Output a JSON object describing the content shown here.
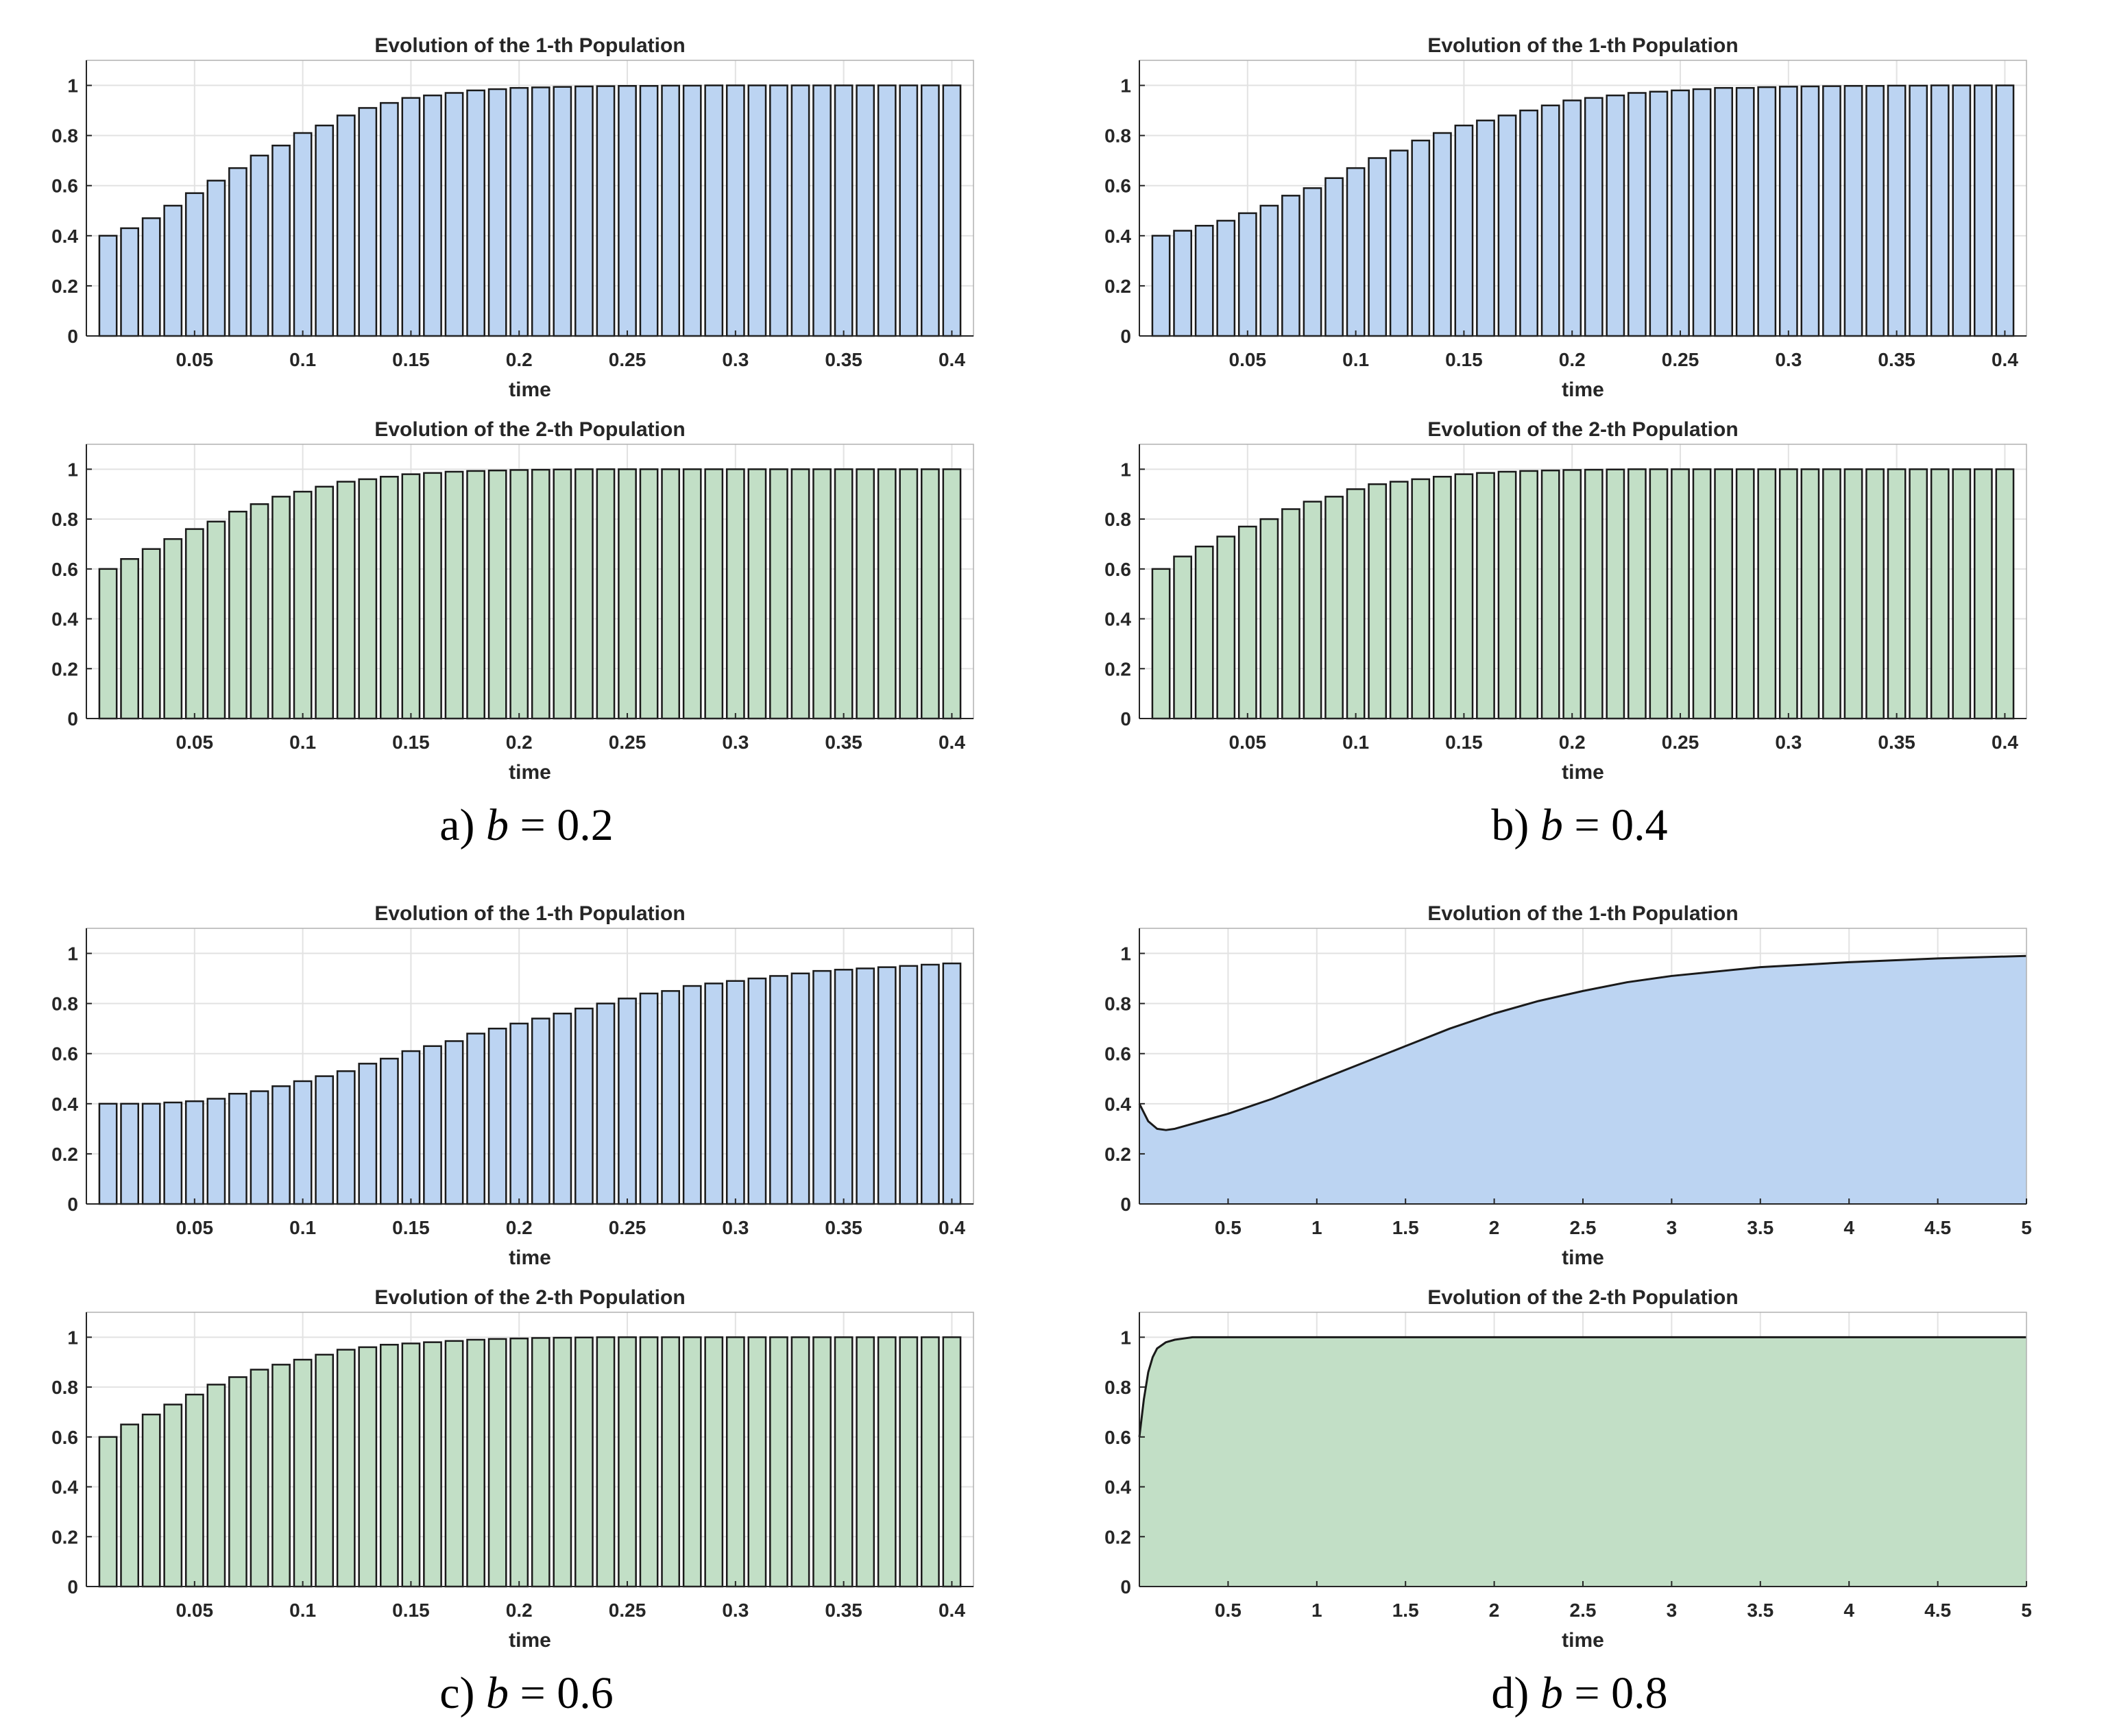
{
  "colors": {
    "pop1_fill": "#bcd4f2",
    "pop2_fill": "#c2dfc6",
    "edge": "#1a1a1a",
    "grid": "#e2e2e2",
    "axis": "#262626"
  },
  "panels": [
    {
      "id": "a",
      "caption_prefix": "a) ",
      "caption_var": "b",
      "caption_rest": " = 0.2"
    },
    {
      "id": "b",
      "caption_prefix": "b) ",
      "caption_var": "b",
      "caption_rest": " = 0.4"
    },
    {
      "id": "c",
      "caption_prefix": "c) ",
      "caption_var": "b",
      "caption_rest": " = 0.6"
    },
    {
      "id": "d",
      "caption_prefix": "d) ",
      "caption_var": "b",
      "caption_rest": " = 0.8"
    }
  ],
  "chart_data": [
    {
      "panel": "a",
      "type": "bar",
      "title": "Evolution of the 1-th Population",
      "xlabel": "time",
      "ylabel": "",
      "xlim": [
        0,
        0.41
      ],
      "ylim": [
        0,
        1.1
      ],
      "grid": true,
      "xticks": [
        "0.05",
        "0.1",
        "0.15",
        "0.2",
        "0.25",
        "0.3",
        "0.35",
        "0.4"
      ],
      "yticks": [
        "0",
        "0.2",
        "0.4",
        "0.6",
        "0.8",
        "1"
      ],
      "x": [
        0.01,
        0.02,
        0.03,
        0.04,
        0.05,
        0.06,
        0.07,
        0.08,
        0.09,
        0.1,
        0.11,
        0.12,
        0.13,
        0.14,
        0.15,
        0.16,
        0.17,
        0.18,
        0.19,
        0.2,
        0.21,
        0.22,
        0.23,
        0.24,
        0.25,
        0.26,
        0.27,
        0.28,
        0.29,
        0.3,
        0.31,
        0.32,
        0.33,
        0.34,
        0.35,
        0.36,
        0.37,
        0.38,
        0.39,
        0.4
      ],
      "values": [
        0.4,
        0.43,
        0.47,
        0.52,
        0.57,
        0.62,
        0.67,
        0.72,
        0.76,
        0.81,
        0.84,
        0.88,
        0.91,
        0.93,
        0.95,
        0.96,
        0.97,
        0.98,
        0.985,
        0.99,
        0.992,
        0.994,
        0.996,
        0.997,
        0.998,
        0.998,
        0.999,
        0.999,
        1,
        1,
        1,
        1,
        1,
        1,
        1,
        1,
        1,
        1,
        1,
        1
      ]
    },
    {
      "panel": "a",
      "type": "bar",
      "title": "Evolution of the 2-th Population",
      "xlabel": "time",
      "ylabel": "",
      "xlim": [
        0,
        0.41
      ],
      "ylim": [
        0,
        1.1
      ],
      "grid": true,
      "xticks": [
        "0.05",
        "0.1",
        "0.15",
        "0.2",
        "0.25",
        "0.3",
        "0.35",
        "0.4"
      ],
      "yticks": [
        "0",
        "0.2",
        "0.4",
        "0.6",
        "0.8",
        "1"
      ],
      "x": [
        0.01,
        0.02,
        0.03,
        0.04,
        0.05,
        0.06,
        0.07,
        0.08,
        0.09,
        0.1,
        0.11,
        0.12,
        0.13,
        0.14,
        0.15,
        0.16,
        0.17,
        0.18,
        0.19,
        0.2,
        0.21,
        0.22,
        0.23,
        0.24,
        0.25,
        0.26,
        0.27,
        0.28,
        0.29,
        0.3,
        0.31,
        0.32,
        0.33,
        0.34,
        0.35,
        0.36,
        0.37,
        0.38,
        0.39,
        0.4
      ],
      "values": [
        0.6,
        0.64,
        0.68,
        0.72,
        0.76,
        0.79,
        0.83,
        0.86,
        0.89,
        0.91,
        0.93,
        0.95,
        0.96,
        0.97,
        0.98,
        0.985,
        0.99,
        0.993,
        0.995,
        0.997,
        0.998,
        0.999,
        1,
        1,
        1,
        1,
        1,
        1,
        1,
        1,
        1,
        1,
        1,
        1,
        1,
        1,
        1,
        1,
        1,
        1
      ]
    },
    {
      "panel": "b",
      "type": "bar",
      "title": "Evolution of the 1-th Population",
      "xlabel": "time",
      "ylabel": "",
      "xlim": [
        0,
        0.41
      ],
      "ylim": [
        0,
        1.1
      ],
      "grid": true,
      "xticks": [
        "0.05",
        "0.1",
        "0.15",
        "0.2",
        "0.25",
        "0.3",
        "0.35",
        "0.4"
      ],
      "yticks": [
        "0",
        "0.2",
        "0.4",
        "0.6",
        "0.8",
        "1"
      ],
      "x": [
        0.01,
        0.02,
        0.03,
        0.04,
        0.05,
        0.06,
        0.07,
        0.08,
        0.09,
        0.1,
        0.11,
        0.12,
        0.13,
        0.14,
        0.15,
        0.16,
        0.17,
        0.18,
        0.19,
        0.2,
        0.21,
        0.22,
        0.23,
        0.24,
        0.25,
        0.26,
        0.27,
        0.28,
        0.29,
        0.3,
        0.31,
        0.32,
        0.33,
        0.34,
        0.35,
        0.36,
        0.37,
        0.38,
        0.39,
        0.4
      ],
      "values": [
        0.4,
        0.42,
        0.44,
        0.46,
        0.49,
        0.52,
        0.56,
        0.59,
        0.63,
        0.67,
        0.71,
        0.74,
        0.78,
        0.81,
        0.84,
        0.86,
        0.88,
        0.9,
        0.92,
        0.94,
        0.95,
        0.96,
        0.97,
        0.975,
        0.98,
        0.985,
        0.99,
        0.99,
        0.993,
        0.995,
        0.996,
        0.997,
        0.998,
        0.998,
        0.999,
        0.999,
        1,
        1,
        1,
        1
      ]
    },
    {
      "panel": "b",
      "type": "bar",
      "title": "Evolution of the 2-th Population",
      "xlabel": "time",
      "ylabel": "",
      "xlim": [
        0,
        0.41
      ],
      "ylim": [
        0,
        1.1
      ],
      "grid": true,
      "xticks": [
        "0.05",
        "0.1",
        "0.15",
        "0.2",
        "0.25",
        "0.3",
        "0.35",
        "0.4"
      ],
      "yticks": [
        "0",
        "0.2",
        "0.4",
        "0.6",
        "0.8",
        "1"
      ],
      "x": [
        0.01,
        0.02,
        0.03,
        0.04,
        0.05,
        0.06,
        0.07,
        0.08,
        0.09,
        0.1,
        0.11,
        0.12,
        0.13,
        0.14,
        0.15,
        0.16,
        0.17,
        0.18,
        0.19,
        0.2,
        0.21,
        0.22,
        0.23,
        0.24,
        0.25,
        0.26,
        0.27,
        0.28,
        0.29,
        0.3,
        0.31,
        0.32,
        0.33,
        0.34,
        0.35,
        0.36,
        0.37,
        0.38,
        0.39,
        0.4
      ],
      "values": [
        0.6,
        0.65,
        0.69,
        0.73,
        0.77,
        0.8,
        0.84,
        0.87,
        0.89,
        0.92,
        0.94,
        0.95,
        0.96,
        0.97,
        0.98,
        0.985,
        0.99,
        0.993,
        0.995,
        0.997,
        0.998,
        0.999,
        1,
        1,
        1,
        1,
        1,
        1,
        1,
        1,
        1,
        1,
        1,
        1,
        1,
        1,
        1,
        1,
        1,
        1
      ]
    },
    {
      "panel": "c",
      "type": "bar",
      "title": "Evolution of the 1-th Population",
      "xlabel": "time",
      "ylabel": "",
      "xlim": [
        0,
        0.41
      ],
      "ylim": [
        0,
        1.1
      ],
      "grid": true,
      "xticks": [
        "0.05",
        "0.1",
        "0.15",
        "0.2",
        "0.25",
        "0.3",
        "0.35",
        "0.4"
      ],
      "yticks": [
        "0",
        "0.2",
        "0.4",
        "0.6",
        "0.8",
        "1"
      ],
      "x": [
        0.01,
        0.02,
        0.03,
        0.04,
        0.05,
        0.06,
        0.07,
        0.08,
        0.09,
        0.1,
        0.11,
        0.12,
        0.13,
        0.14,
        0.15,
        0.16,
        0.17,
        0.18,
        0.19,
        0.2,
        0.21,
        0.22,
        0.23,
        0.24,
        0.25,
        0.26,
        0.27,
        0.28,
        0.29,
        0.3,
        0.31,
        0.32,
        0.33,
        0.34,
        0.35,
        0.36,
        0.37,
        0.38,
        0.39,
        0.4
      ],
      "values": [
        0.4,
        0.4,
        0.4,
        0.405,
        0.41,
        0.42,
        0.44,
        0.45,
        0.47,
        0.49,
        0.51,
        0.53,
        0.56,
        0.58,
        0.61,
        0.63,
        0.65,
        0.68,
        0.7,
        0.72,
        0.74,
        0.76,
        0.78,
        0.8,
        0.82,
        0.84,
        0.85,
        0.87,
        0.88,
        0.89,
        0.9,
        0.91,
        0.92,
        0.93,
        0.935,
        0.94,
        0.945,
        0.95,
        0.955,
        0.96
      ]
    },
    {
      "panel": "c",
      "type": "bar",
      "title": "Evolution of the 2-th Population",
      "xlabel": "time",
      "ylabel": "",
      "xlim": [
        0,
        0.41
      ],
      "ylim": [
        0,
        1.1
      ],
      "grid": true,
      "xticks": [
        "0.05",
        "0.1",
        "0.15",
        "0.2",
        "0.25",
        "0.3",
        "0.35",
        "0.4"
      ],
      "yticks": [
        "0",
        "0.2",
        "0.4",
        "0.6",
        "0.8",
        "1"
      ],
      "x": [
        0.01,
        0.02,
        0.03,
        0.04,
        0.05,
        0.06,
        0.07,
        0.08,
        0.09,
        0.1,
        0.11,
        0.12,
        0.13,
        0.14,
        0.15,
        0.16,
        0.17,
        0.18,
        0.19,
        0.2,
        0.21,
        0.22,
        0.23,
        0.24,
        0.25,
        0.26,
        0.27,
        0.28,
        0.29,
        0.3,
        0.31,
        0.32,
        0.33,
        0.34,
        0.35,
        0.36,
        0.37,
        0.38,
        0.39,
        0.4
      ],
      "values": [
        0.6,
        0.65,
        0.69,
        0.73,
        0.77,
        0.81,
        0.84,
        0.87,
        0.89,
        0.91,
        0.93,
        0.95,
        0.96,
        0.97,
        0.975,
        0.98,
        0.985,
        0.99,
        0.993,
        0.995,
        0.997,
        0.998,
        0.999,
        1,
        1,
        1,
        1,
        1,
        1,
        1,
        1,
        1,
        1,
        1,
        1,
        1,
        1,
        1,
        1,
        1
      ]
    },
    {
      "panel": "d",
      "type": "area",
      "title": "Evolution of the 1-th Population",
      "xlabel": "time",
      "ylabel": "",
      "xlim": [
        0,
        5
      ],
      "ylim": [
        0,
        1.1
      ],
      "grid": true,
      "xticks": [
        "0.5",
        "1",
        "1.5",
        "2",
        "2.5",
        "3",
        "3.5",
        "4",
        "4.5",
        "5"
      ],
      "yticks": [
        "0",
        "0.2",
        "0.4",
        "0.6",
        "0.8",
        "1"
      ],
      "x": [
        0,
        0.05,
        0.1,
        0.15,
        0.2,
        0.3,
        0.4,
        0.5,
        0.75,
        1,
        1.25,
        1.5,
        1.75,
        2,
        2.25,
        2.5,
        2.75,
        3,
        3.5,
        4,
        4.5,
        5
      ],
      "values": [
        0.4,
        0.33,
        0.3,
        0.295,
        0.3,
        0.32,
        0.34,
        0.36,
        0.42,
        0.49,
        0.56,
        0.63,
        0.7,
        0.76,
        0.81,
        0.85,
        0.885,
        0.91,
        0.945,
        0.965,
        0.98,
        0.99
      ]
    },
    {
      "panel": "d",
      "type": "area",
      "title": "Evolution of the 2-th Population",
      "xlabel": "time",
      "ylabel": "",
      "xlim": [
        0,
        5
      ],
      "ylim": [
        0,
        1.1
      ],
      "grid": true,
      "xticks": [
        "0.5",
        "1",
        "1.5",
        "2",
        "2.5",
        "3",
        "3.5",
        "4",
        "4.5",
        "5"
      ],
      "yticks": [
        "0",
        "0.2",
        "0.4",
        "0.6",
        "0.8",
        "1"
      ],
      "x": [
        0,
        0.025,
        0.05,
        0.075,
        0.1,
        0.15,
        0.2,
        0.25,
        0.3,
        0.4,
        0.5,
        1,
        2,
        3,
        4,
        5
      ],
      "values": [
        0.6,
        0.75,
        0.86,
        0.92,
        0.955,
        0.98,
        0.99,
        0.995,
        1,
        1,
        1,
        1,
        1,
        1,
        1,
        1
      ]
    }
  ]
}
